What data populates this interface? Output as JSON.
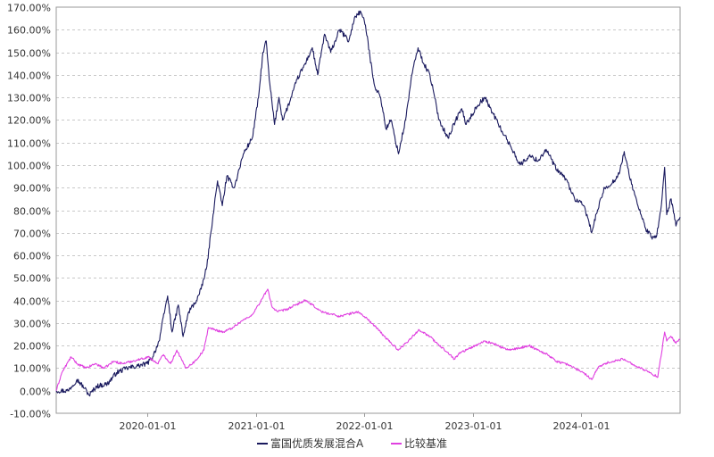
{
  "chart_data": {
    "type": "line",
    "x_range": [
      "2019-03-01",
      "2024-11-29"
    ],
    "ylim": [
      -10,
      170
    ],
    "y_ticks": [
      -10,
      0,
      10,
      20,
      30,
      40,
      50,
      60,
      70,
      80,
      90,
      100,
      110,
      120,
      130,
      140,
      150,
      160,
      170
    ],
    "y_tick_labels": [
      "-10.00%",
      "0.00%",
      "10.00%",
      "20.00%",
      "30.00%",
      "40.00%",
      "50.00%",
      "60.00%",
      "70.00%",
      "80.00%",
      "90.00%",
      "100.00%",
      "110.00%",
      "120.00%",
      "130.00%",
      "140.00%",
      "150.00%",
      "160.00%",
      "170.00%"
    ],
    "x_tick_labels": [
      "2020-01-01",
      "2021-01-01",
      "2022-01-01",
      "2023-01-01",
      "2024-01-01"
    ],
    "grid": true,
    "legend_position": "bottom-center",
    "series": [
      {
        "name": "富国优质发展混合A",
        "color": "#1a1a5e",
        "points": [
          [
            "2019-03-01",
            0
          ],
          [
            "2019-04-10",
            0
          ],
          [
            "2019-05-10",
            5
          ],
          [
            "2019-06-05",
            1
          ],
          [
            "2019-06-20",
            -2
          ],
          [
            "2019-07-15",
            2
          ],
          [
            "2019-08-20",
            3
          ],
          [
            "2019-09-20",
            8
          ],
          [
            "2019-10-25",
            10
          ],
          [
            "2019-12-01",
            11
          ],
          [
            "2020-01-01",
            12
          ],
          [
            "2020-01-20",
            15
          ],
          [
            "2020-02-10",
            22
          ],
          [
            "2020-03-01",
            36
          ],
          [
            "2020-03-10",
            42
          ],
          [
            "2020-03-25",
            26
          ],
          [
            "2020-04-15",
            38
          ],
          [
            "2020-05-01",
            24
          ],
          [
            "2020-05-20",
            35
          ],
          [
            "2020-06-15",
            40
          ],
          [
            "2020-07-01",
            45
          ],
          [
            "2020-07-20",
            55
          ],
          [
            "2020-08-10",
            78
          ],
          [
            "2020-08-25",
            93
          ],
          [
            "2020-09-10",
            82
          ],
          [
            "2020-09-25",
            95
          ],
          [
            "2020-10-20",
            90
          ],
          [
            "2020-11-20",
            105
          ],
          [
            "2020-12-20",
            112
          ],
          [
            "2021-01-10",
            130
          ],
          [
            "2021-01-25",
            150
          ],
          [
            "2021-02-05",
            155
          ],
          [
            "2021-02-15",
            138
          ],
          [
            "2021-03-05",
            118
          ],
          [
            "2021-03-20",
            130
          ],
          [
            "2021-04-01",
            120
          ],
          [
            "2021-04-25",
            128
          ],
          [
            "2021-05-20",
            138
          ],
          [
            "2021-06-20",
            146
          ],
          [
            "2021-07-10",
            152
          ],
          [
            "2021-07-28",
            140
          ],
          [
            "2021-08-20",
            158
          ],
          [
            "2021-09-10",
            150
          ],
          [
            "2021-10-10",
            160
          ],
          [
            "2021-11-10",
            155
          ],
          [
            "2021-12-01",
            166
          ],
          [
            "2021-12-20",
            168
          ],
          [
            "2022-01-05",
            162
          ],
          [
            "2022-01-20",
            148
          ],
          [
            "2022-02-05",
            135
          ],
          [
            "2022-02-25",
            130
          ],
          [
            "2022-03-15",
            116
          ],
          [
            "2022-04-01",
            120
          ],
          [
            "2022-04-26",
            105
          ],
          [
            "2022-05-20",
            120
          ],
          [
            "2022-06-10",
            140
          ],
          [
            "2022-07-01",
            152
          ],
          [
            "2022-07-20",
            145
          ],
          [
            "2022-08-10",
            140
          ],
          [
            "2022-09-10",
            120
          ],
          [
            "2022-10-10",
            112
          ],
          [
            "2022-11-05",
            120
          ],
          [
            "2022-11-25",
            125
          ],
          [
            "2022-12-10",
            118
          ],
          [
            "2023-01-15",
            126
          ],
          [
            "2023-02-10",
            130
          ],
          [
            "2023-03-10",
            123
          ],
          [
            "2023-04-10",
            115
          ],
          [
            "2023-05-10",
            108
          ],
          [
            "2023-06-10",
            100
          ],
          [
            "2023-07-10",
            104
          ],
          [
            "2023-08-10",
            102
          ],
          [
            "2023-09-05",
            107
          ],
          [
            "2023-10-10",
            98
          ],
          [
            "2023-11-10",
            94
          ],
          [
            "2023-12-10",
            85
          ],
          [
            "2024-01-10",
            82
          ],
          [
            "2024-01-25",
            76
          ],
          [
            "2024-02-05",
            70
          ],
          [
            "2024-02-25",
            80
          ],
          [
            "2024-03-20",
            90
          ],
          [
            "2024-04-15",
            92
          ],
          [
            "2024-05-10",
            97
          ],
          [
            "2024-05-25",
            106
          ],
          [
            "2024-06-10",
            96
          ],
          [
            "2024-07-10",
            82
          ],
          [
            "2024-08-05",
            72
          ],
          [
            "2024-08-25",
            68
          ],
          [
            "2024-09-10",
            68
          ],
          [
            "2024-09-25",
            80
          ],
          [
            "2024-10-08",
            99
          ],
          [
            "2024-10-15",
            78
          ],
          [
            "2024-10-30",
            85
          ],
          [
            "2024-11-15",
            73
          ],
          [
            "2024-11-29",
            77
          ]
        ]
      },
      {
        "name": "比较基准",
        "color": "#e040e0",
        "points": [
          [
            "2019-03-01",
            0
          ],
          [
            "2019-03-20",
            8
          ],
          [
            "2019-04-20",
            15
          ],
          [
            "2019-05-10",
            12
          ],
          [
            "2019-06-10",
            10
          ],
          [
            "2019-07-10",
            12
          ],
          [
            "2019-08-10",
            10
          ],
          [
            "2019-09-10",
            13
          ],
          [
            "2019-10-10",
            12
          ],
          [
            "2019-11-10",
            13
          ],
          [
            "2019-12-10",
            14
          ],
          [
            "2020-01-05",
            15
          ],
          [
            "2020-02-05",
            12
          ],
          [
            "2020-02-25",
            16
          ],
          [
            "2020-03-20",
            12
          ],
          [
            "2020-04-10",
            18
          ],
          [
            "2020-05-10",
            10
          ],
          [
            "2020-06-10",
            13
          ],
          [
            "2020-07-10",
            18
          ],
          [
            "2020-07-25",
            28
          ],
          [
            "2020-08-15",
            27
          ],
          [
            "2020-09-15",
            26
          ],
          [
            "2020-10-15",
            28
          ],
          [
            "2020-11-15",
            31
          ],
          [
            "2020-12-15",
            33
          ],
          [
            "2021-01-10",
            38
          ],
          [
            "2021-02-10",
            45
          ],
          [
            "2021-02-25",
            37
          ],
          [
            "2021-03-15",
            35
          ],
          [
            "2021-04-15",
            36
          ],
          [
            "2021-05-15",
            38
          ],
          [
            "2021-06-15",
            40
          ],
          [
            "2021-07-10",
            38
          ],
          [
            "2021-08-10",
            35
          ],
          [
            "2021-09-10",
            34
          ],
          [
            "2021-10-10",
            33
          ],
          [
            "2021-11-10",
            34
          ],
          [
            "2021-12-10",
            35
          ],
          [
            "2022-01-10",
            32
          ],
          [
            "2022-02-10",
            28
          ],
          [
            "2022-03-10",
            24
          ],
          [
            "2022-04-10",
            20
          ],
          [
            "2022-04-26",
            18
          ],
          [
            "2022-05-20",
            21
          ],
          [
            "2022-06-20",
            25
          ],
          [
            "2022-07-05",
            27
          ],
          [
            "2022-08-10",
            24
          ],
          [
            "2022-09-10",
            20
          ],
          [
            "2022-10-10",
            17
          ],
          [
            "2022-10-31",
            14
          ],
          [
            "2022-11-20",
            17
          ],
          [
            "2022-12-10",
            18
          ],
          [
            "2023-01-10",
            20
          ],
          [
            "2023-02-10",
            22
          ],
          [
            "2023-03-10",
            21
          ],
          [
            "2023-04-10",
            19
          ],
          [
            "2023-05-10",
            18
          ],
          [
            "2023-06-10",
            19
          ],
          [
            "2023-07-10",
            20
          ],
          [
            "2023-08-10",
            18
          ],
          [
            "2023-09-10",
            16
          ],
          [
            "2023-10-10",
            13
          ],
          [
            "2023-11-10",
            12
          ],
          [
            "2023-12-10",
            10
          ],
          [
            "2024-01-10",
            8
          ],
          [
            "2024-02-05",
            5
          ],
          [
            "2024-02-25",
            10
          ],
          [
            "2024-03-20",
            12
          ],
          [
            "2024-04-15",
            13
          ],
          [
            "2024-05-20",
            14
          ],
          [
            "2024-06-20",
            12
          ],
          [
            "2024-07-20",
            10
          ],
          [
            "2024-08-20",
            8
          ],
          [
            "2024-09-15",
            6
          ],
          [
            "2024-10-08",
            26
          ],
          [
            "2024-10-15",
            22
          ],
          [
            "2024-10-30",
            24
          ],
          [
            "2024-11-15",
            21
          ],
          [
            "2024-11-29",
            23
          ]
        ]
      }
    ]
  }
}
